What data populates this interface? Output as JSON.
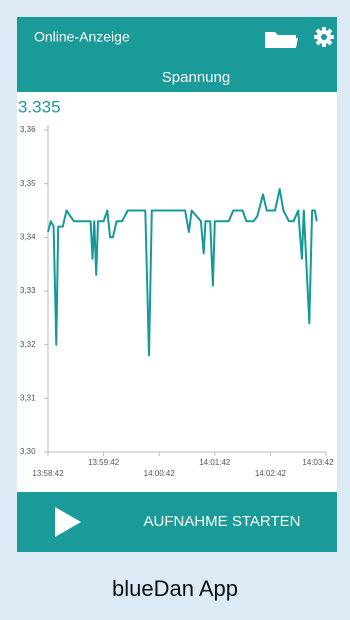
{
  "app": {
    "title": "Online-Anzeige",
    "subtitle": "Spannung",
    "current_value": "3.335",
    "button": "AUFNAHME STARTEN",
    "caption": "blueDan App"
  },
  "chart_data": {
    "type": "line",
    "x": [
      "13:58:42",
      "13:58:45",
      "13:58:48",
      "13:58:51",
      "13:58:53",
      "13:58:58",
      "13:59:02",
      "13:59:06",
      "13:59:10",
      "13:59:16",
      "13:59:28",
      "13:59:30",
      "13:59:32",
      "13:59:34",
      "13:59:36",
      "13:59:42",
      "13:59:46",
      "13:59:49",
      "13:59:52",
      "13:59:56",
      "14:00:02",
      "14:00:08",
      "14:00:27",
      "14:00:31",
      "14:00:34",
      "14:00:52",
      "14:01:02",
      "14:01:10",
      "14:01:14",
      "14:01:17",
      "14:01:27",
      "14:01:30",
      "14:01:32",
      "14:01:37",
      "14:01:40",
      "14:01:42",
      "14:01:57",
      "14:02:02",
      "14:02:12",
      "14:02:16",
      "14:02:24",
      "14:02:28",
      "14:02:34",
      "14:02:38",
      "14:02:47",
      "14:02:52",
      "14:02:56",
      "14:03:02",
      "14:03:07",
      "14:03:12",
      "14:03:16",
      "14:03:18",
      "14:03:24",
      "14:03:27",
      "14:03:30",
      "14:03:32"
    ],
    "series": [
      {
        "color": "#17999b",
        "values": [
          3.341,
          3.343,
          3.342,
          3.32,
          3.342,
          3.342,
          3.345,
          3.344,
          3.343,
          3.343,
          3.343,
          3.336,
          3.343,
          3.333,
          3.343,
          3.343,
          3.345,
          3.34,
          3.34,
          3.343,
          3.343,
          3.345,
          3.345,
          3.318,
          3.345,
          3.345,
          3.345,
          3.345,
          3.341,
          3.345,
          3.343,
          3.337,
          3.343,
          3.343,
          3.331,
          3.343,
          3.343,
          3.345,
          3.345,
          3.343,
          3.343,
          3.344,
          3.348,
          3.345,
          3.345,
          3.349,
          3.345,
          3.343,
          3.343,
          3.345,
          3.336,
          3.345,
          3.324,
          3.345,
          3.345,
          3.343
        ]
      }
    ],
    "xlim": [
      "13:58:42",
      "14:03:42"
    ],
    "xticks": [
      "13:58:42",
      "13:59:42",
      "14:00:42",
      "14:01:42",
      "14:02:42",
      "14:03:42"
    ],
    "ylim": [
      3.3,
      3.36
    ],
    "yticks": [
      {
        "value": 3.3,
        "label": "3,30"
      },
      {
        "value": 3.31,
        "label": "3,31"
      },
      {
        "value": 3.32,
        "label": "3,32"
      },
      {
        "value": 3.33,
        "label": "3,33"
      },
      {
        "value": 3.34,
        "label": "3,34"
      },
      {
        "value": 3.35,
        "label": "3,35"
      },
      {
        "value": 3.36,
        "label": "3,36"
      }
    ],
    "grid": false
  }
}
